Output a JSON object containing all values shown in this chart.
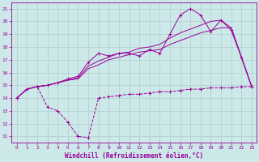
{
  "xlabel": "Windchill (Refroidissement éolien,°C)",
  "ylabel": "",
  "background_color": "#cce8e8",
  "grid_color": "#b0cccc",
  "line_color": "#990099",
  "xlim": [
    -0.5,
    23.5
  ],
  "ylim": [
    10.5,
    21.5
  ],
  "yticks": [
    11,
    12,
    13,
    14,
    15,
    16,
    17,
    18,
    19,
    20,
    21
  ],
  "xticks": [
    0,
    1,
    2,
    3,
    4,
    5,
    6,
    7,
    8,
    9,
    10,
    11,
    12,
    13,
    14,
    15,
    16,
    17,
    18,
    19,
    20,
    21,
    22,
    23
  ],
  "s1_x": [
    0,
    1,
    2,
    3,
    4,
    5,
    6,
    7,
    8,
    9,
    10,
    11,
    12,
    13,
    14,
    15,
    16,
    17,
    18,
    19,
    20,
    21,
    22,
    23
  ],
  "s1_y": [
    14.0,
    14.7,
    14.9,
    13.3,
    13.0,
    12.1,
    11.0,
    10.9,
    14.0,
    14.1,
    14.2,
    14.3,
    14.3,
    14.4,
    14.5,
    14.5,
    14.6,
    14.7,
    14.7,
    14.8,
    14.8,
    14.8,
    14.9,
    14.9
  ],
  "s2_x": [
    0,
    1,
    2,
    3,
    4,
    5,
    6,
    7,
    8,
    9,
    10,
    11,
    12,
    13,
    14,
    15,
    16,
    17,
    18,
    19,
    20,
    21,
    22,
    23
  ],
  "s2_y": [
    14.0,
    14.7,
    14.9,
    15.0,
    15.2,
    15.4,
    15.5,
    16.3,
    16.6,
    17.0,
    17.2,
    17.4,
    17.6,
    17.7,
    17.8,
    18.2,
    18.5,
    18.8,
    19.1,
    19.3,
    19.5,
    19.5,
    17.2,
    14.9
  ],
  "s3_x": [
    0,
    1,
    2,
    3,
    4,
    5,
    6,
    7,
    8,
    9,
    10,
    11,
    12,
    13,
    14,
    15,
    16,
    17,
    18,
    19,
    20,
    21,
    22,
    23
  ],
  "s3_y": [
    14.0,
    14.7,
    14.9,
    15.0,
    15.2,
    15.4,
    15.6,
    16.5,
    16.9,
    17.2,
    17.5,
    17.6,
    17.9,
    18.0,
    18.2,
    18.7,
    19.1,
    19.4,
    19.7,
    20.0,
    20.1,
    19.5,
    17.2,
    14.9
  ],
  "s4_x": [
    0,
    1,
    2,
    3,
    4,
    5,
    6,
    7,
    8,
    9,
    10,
    11,
    12,
    13,
    14,
    15,
    16,
    17,
    18,
    19,
    20,
    21,
    22,
    23
  ],
  "s4_y": [
    14.0,
    14.7,
    14.9,
    15.0,
    15.2,
    15.5,
    15.7,
    16.8,
    17.5,
    17.3,
    17.5,
    17.5,
    17.3,
    17.8,
    17.5,
    19.0,
    20.5,
    21.0,
    20.5,
    19.2,
    20.1,
    19.3,
    17.2,
    14.9
  ]
}
